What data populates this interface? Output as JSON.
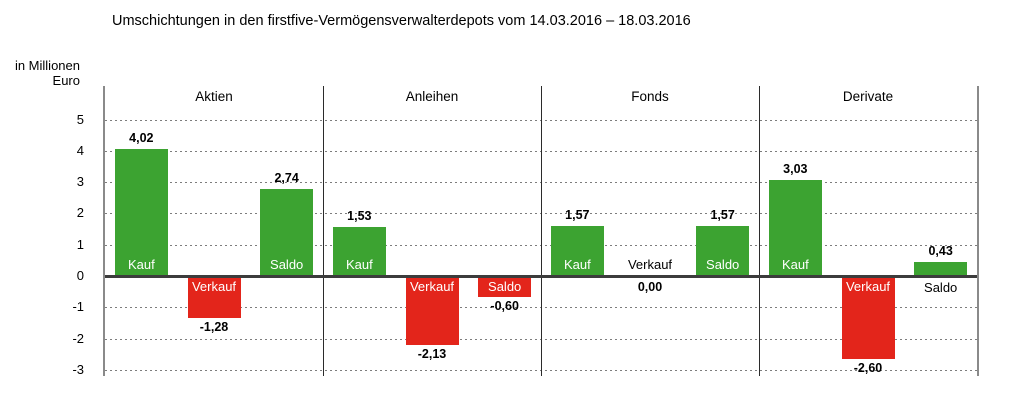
{
  "chart_data": {
    "type": "bar",
    "title": "Umschichtungen in den firstfive-Vermögensverwalterdepots vom 14.03.2016 – 18.03.2016",
    "ylabel": "in Millionen Euro",
    "ylabel_lines": [
      "in Millionen",
      "Euro"
    ],
    "ylim": [
      -3,
      5
    ],
    "yticks": [
      "5",
      "4",
      "3",
      "2",
      "1",
      "0",
      "-1",
      "-2",
      "-3"
    ],
    "grid": "horizontal-dashed",
    "legend": "none",
    "categories": [
      "Kauf",
      "Verkauf",
      "Saldo"
    ],
    "groups": [
      {
        "label": "Aktien",
        "bars": [
          {
            "name": "Kauf",
            "value": 4.02,
            "display": "4,02"
          },
          {
            "name": "Verkauf",
            "value": -1.28,
            "display": "-1,28"
          },
          {
            "name": "Saldo",
            "value": 2.74,
            "display": "2,74"
          }
        ]
      },
      {
        "label": "Anleihen",
        "bars": [
          {
            "name": "Kauf",
            "value": 1.53,
            "display": "1,53"
          },
          {
            "name": "Verkauf",
            "value": -2.13,
            "display": "-2,13"
          },
          {
            "name": "Saldo",
            "value": -0.6,
            "display": "-0,60"
          }
        ]
      },
      {
        "label": "Fonds",
        "bars": [
          {
            "name": "Kauf",
            "value": 1.57,
            "display": "1,57"
          },
          {
            "name": "Verkauf",
            "value": 0.0,
            "display": "0,00"
          },
          {
            "name": "Saldo",
            "value": 1.57,
            "display": "1,57"
          }
        ]
      },
      {
        "label": "Derivate",
        "bars": [
          {
            "name": "Kauf",
            "value": 3.03,
            "display": "3,03"
          },
          {
            "name": "Verkauf",
            "value": -2.6,
            "display": "-2,60"
          },
          {
            "name": "Saldo",
            "value": 0.43,
            "display": "0,43"
          }
        ]
      }
    ],
    "colors": {
      "positive": "#3CA331",
      "negative": "#E3251B",
      "bar_inner_label": "#FFFFFF",
      "outer_label": "#000000",
      "zero_line": "#3C3C3C",
      "axis_border": "#8A8A8A",
      "grid_line": "#7D7D7D",
      "separator": "#2B2B2B"
    }
  }
}
